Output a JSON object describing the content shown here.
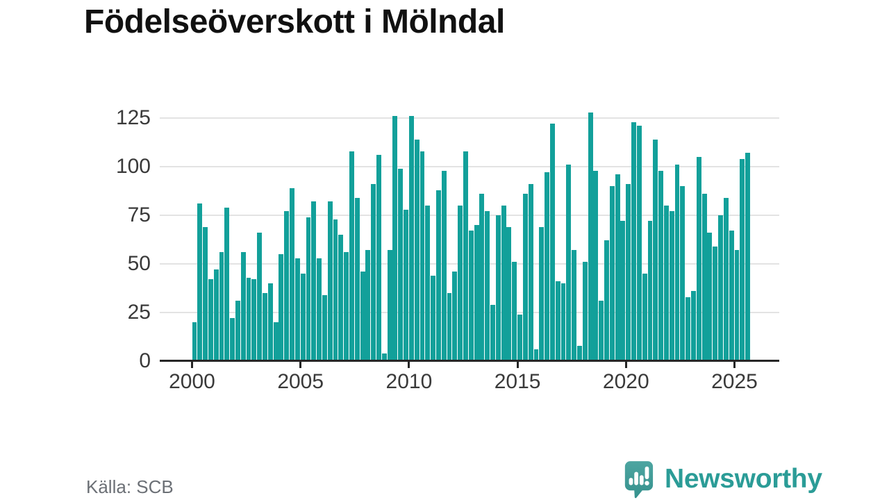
{
  "title": "Födelseöverskott i Mölndal",
  "source": {
    "label": "Källa: SCB"
  },
  "branding": {
    "name": "Newsworthy",
    "logo_icon": "speech-bubble-bar-chart-exclamation",
    "wordmark_color": "#2b9c97",
    "bubble_color_top": "#4da5a1",
    "bubble_color_bottom": "#35918d"
  },
  "colors": {
    "bar": "#12a09a",
    "axis": "#262626",
    "gridline": "#e3e3e3",
    "tick_label": "#3a3a3a",
    "title_text": "#111111",
    "source_text": "#6c7076",
    "background": "#ffffff"
  },
  "chart_data": {
    "type": "bar",
    "title": "Födelseöverskott i Mölndal",
    "xlabel": "",
    "ylabel": "",
    "frequency": "quarterly",
    "start_period": "2000Q1",
    "end_period": "2025Q3",
    "start_year": 2000,
    "values": [
      20,
      81,
      69,
      42,
      47,
      56,
      79,
      22,
      31,
      56,
      43,
      42,
      66,
      35,
      40,
      20,
      55,
      77,
      89,
      53,
      45,
      74,
      82,
      53,
      34,
      82,
      73,
      65,
      56,
      108,
      84,
      46,
      57,
      91,
      106,
      4,
      57,
      126,
      99,
      78,
      126,
      114,
      108,
      80,
      44,
      88,
      98,
      35,
      46,
      80,
      108,
      67,
      70,
      86,
      77,
      29,
      75,
      80,
      69,
      51,
      24,
      86,
      91,
      6,
      69,
      97,
      122,
      41,
      40,
      101,
      57,
      8,
      51,
      128,
      98,
      31,
      62,
      90,
      96,
      72,
      91,
      123,
      121,
      45,
      72,
      114,
      98,
      80,
      77,
      101,
      90,
      33,
      36,
      105,
      86,
      66,
      59,
      75,
      84,
      67,
      57,
      104,
      107
    ],
    "x_ticks": [
      2000,
      2005,
      2010,
      2015,
      2020,
      2025
    ],
    "x_tick_labels": [
      "2000",
      "2005",
      "2010",
      "2015",
      "2020",
      "2025"
    ],
    "y_ticks": [
      0,
      25,
      50,
      75,
      100,
      125
    ],
    "y_tick_labels": [
      "0",
      "25",
      "50",
      "75",
      "100",
      "125"
    ],
    "ylim": [
      0,
      130
    ],
    "grid": "horizontal",
    "legend": "none"
  }
}
